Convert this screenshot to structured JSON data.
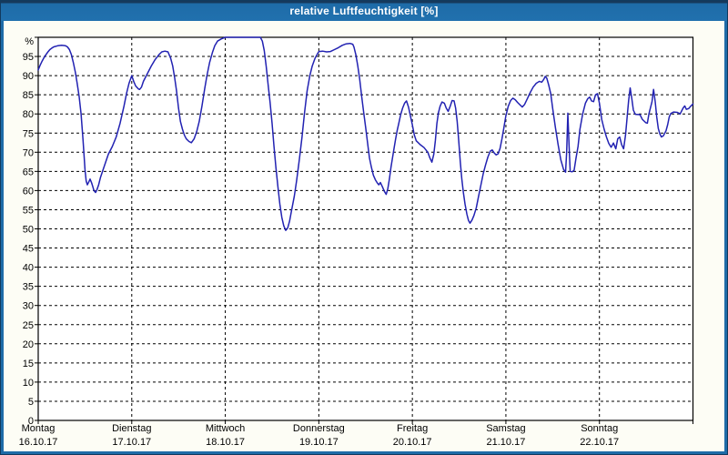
{
  "window": {
    "title": "relative Luftfeuchtigkeit [%]"
  },
  "colors": {
    "titlebar_bg": "#1e6ba8",
    "titlebar_top_edge": "#16395c",
    "window_border": "#123a5e",
    "content_bg": "#fdfdf5",
    "plot_bg": "#ffffff",
    "grid": "#000000",
    "axis": "#000000",
    "line": "#2222b2",
    "title_text": "#ffffff",
    "label_text": "#000000"
  },
  "chart_data": {
    "type": "line",
    "title": "relative Luftfeuchtigkeit [%]",
    "unit_label": "%",
    "xlabel": "",
    "ylabel": "relative Luftfeuchtigkeit",
    "ylim": [
      0,
      100
    ],
    "y_ticks": [
      0,
      5,
      10,
      15,
      20,
      25,
      30,
      35,
      40,
      45,
      50,
      55,
      60,
      65,
      70,
      75,
      80,
      85,
      90,
      95
    ],
    "x_range_hours": [
      0,
      168
    ],
    "grid": "dashed",
    "legend_position": "none",
    "x_days": [
      {
        "name": "Montag",
        "date": "16.10.17"
      },
      {
        "name": "Dienstag",
        "date": "17.10.17"
      },
      {
        "name": "Mittwoch",
        "date": "18.10.17"
      },
      {
        "name": "Donnerstag",
        "date": "19.10.17"
      },
      {
        "name": "Freitag",
        "date": "20.10.17"
      },
      {
        "name": "Samstag",
        "date": "21.10.17"
      },
      {
        "name": "Sonntag",
        "date": "22.10.17"
      }
    ],
    "series": [
      {
        "name": "relative Luftfeuchtigkeit [%]",
        "color": "#2222b2",
        "points": [
          [
            0,
            91.5
          ],
          [
            0.5,
            92.7
          ],
          [
            1,
            93.8
          ],
          [
            1.5,
            94.7
          ],
          [
            2,
            95.5
          ],
          [
            2.5,
            96.2
          ],
          [
            3,
            96.8
          ],
          [
            3.5,
            97.2
          ],
          [
            4,
            97.5
          ],
          [
            5,
            97.8
          ],
          [
            6,
            97.9
          ],
          [
            7,
            97.8
          ],
          [
            7.5,
            97.5
          ],
          [
            8,
            96.8
          ],
          [
            8.5,
            95.5
          ],
          [
            9,
            93.5
          ],
          [
            9.5,
            91
          ],
          [
            10,
            88
          ],
          [
            10.5,
            84.5
          ],
          [
            11,
            80
          ],
          [
            11.5,
            73
          ],
          [
            12,
            65.5
          ],
          [
            12.3,
            62.5
          ],
          [
            12.6,
            61.5
          ],
          [
            13,
            62.3
          ],
          [
            13.3,
            63
          ],
          [
            13.7,
            62
          ],
          [
            14,
            61
          ],
          [
            14.3,
            60
          ],
          [
            14.7,
            59.5
          ],
          [
            15,
            60
          ],
          [
            15.5,
            61.5
          ],
          [
            16,
            63.5
          ],
          [
            17,
            66.5
          ],
          [
            18,
            69.5
          ],
          [
            19,
            71.5
          ],
          [
            20,
            74
          ],
          [
            21,
            77.5
          ],
          [
            22,
            82
          ],
          [
            22.7,
            85.5
          ],
          [
            23.3,
            88
          ],
          [
            24,
            90
          ],
          [
            24.5,
            88.5
          ],
          [
            25,
            87.3
          ],
          [
            25.7,
            86.5
          ],
          [
            26,
            86.4
          ],
          [
            26.5,
            87
          ],
          [
            27,
            88.5
          ],
          [
            28,
            90.5
          ],
          [
            29,
            92.5
          ],
          [
            30,
            94.2
          ],
          [
            31,
            95.5
          ],
          [
            31.7,
            96.2
          ],
          [
            32.5,
            96.4
          ],
          [
            33.3,
            96.2
          ],
          [
            34,
            94.5
          ],
          [
            34.5,
            92.5
          ],
          [
            35,
            89.5
          ],
          [
            35.5,
            86
          ],
          [
            36,
            81.5
          ],
          [
            36.5,
            78
          ],
          [
            37,
            76
          ],
          [
            37.5,
            74.5
          ],
          [
            38,
            73.5
          ],
          [
            38.7,
            72.8
          ],
          [
            39.3,
            72.5
          ],
          [
            40,
            73.5
          ],
          [
            40.7,
            75.5
          ],
          [
            41.3,
            78
          ],
          [
            42,
            82
          ],
          [
            42.7,
            86.5
          ],
          [
            43.3,
            90
          ],
          [
            44,
            93.5
          ],
          [
            44.7,
            96
          ],
          [
            45.3,
            97.8
          ],
          [
            46,
            99
          ],
          [
            47,
            99.6
          ],
          [
            48,
            100
          ],
          [
            50,
            100
          ],
          [
            52,
            100
          ],
          [
            54,
            100
          ],
          [
            56,
            100
          ],
          [
            57,
            100
          ],
          [
            57.5,
            99
          ],
          [
            58,
            96.5
          ],
          [
            58.5,
            92.5
          ],
          [
            59,
            87.5
          ],
          [
            59.5,
            83
          ],
          [
            60,
            77.5
          ],
          [
            60.5,
            71.5
          ],
          [
            61,
            66
          ],
          [
            61.5,
            61
          ],
          [
            62,
            56.5
          ],
          [
            62.5,
            53
          ],
          [
            63,
            50.8
          ],
          [
            63.5,
            49.6
          ],
          [
            64,
            50.2
          ],
          [
            64.5,
            52
          ],
          [
            65,
            54.8
          ],
          [
            65.7,
            58.5
          ],
          [
            66.3,
            62.5
          ],
          [
            67,
            68
          ],
          [
            67.7,
            74
          ],
          [
            68.3,
            80
          ],
          [
            69,
            86
          ],
          [
            69.7,
            90
          ],
          [
            70.3,
            92.5
          ],
          [
            71,
            94.5
          ],
          [
            71.7,
            95.8
          ],
          [
            72,
            96.3
          ],
          [
            73,
            96.4
          ],
          [
            74,
            96.2
          ],
          [
            75,
            96.3
          ],
          [
            76,
            96.8
          ],
          [
            77,
            97.3
          ],
          [
            78,
            97.9
          ],
          [
            79,
            98.3
          ],
          [
            80,
            98.4
          ],
          [
            80.7,
            98.2
          ],
          [
            81,
            97.5
          ],
          [
            81.5,
            95.5
          ],
          [
            82,
            92.5
          ],
          [
            82.5,
            89
          ],
          [
            83,
            84.5
          ],
          [
            83.5,
            80.5
          ],
          [
            84,
            76.5
          ],
          [
            84.5,
            72.5
          ],
          [
            85,
            68.5
          ],
          [
            85.5,
            66
          ],
          [
            86,
            64
          ],
          [
            86.5,
            62.8
          ],
          [
            87,
            62
          ],
          [
            87.4,
            61.5
          ],
          [
            87.8,
            62.1
          ],
          [
            88.3,
            61
          ],
          [
            88.8,
            59.8
          ],
          [
            89.3,
            59
          ],
          [
            89.7,
            60.5
          ],
          [
            90.1,
            63
          ],
          [
            90.5,
            66
          ],
          [
            90.9,
            68.5
          ],
          [
            91.3,
            71
          ],
          [
            91.7,
            73.4
          ],
          [
            92.1,
            75.6
          ],
          [
            92.5,
            77.5
          ],
          [
            93,
            79.8
          ],
          [
            93.5,
            81.5
          ],
          [
            94,
            82.8
          ],
          [
            94.5,
            83.4
          ],
          [
            95,
            81.8
          ],
          [
            95.5,
            79.5
          ],
          [
            96,
            77.2
          ],
          [
            96.5,
            74.5
          ],
          [
            97,
            73
          ],
          [
            98,
            72
          ],
          [
            99,
            71.2
          ],
          [
            99.5,
            70.6
          ],
          [
            100,
            69.9
          ],
          [
            100.5,
            68.5
          ],
          [
            101,
            67.4
          ],
          [
            101.5,
            69.5
          ],
          [
            101.9,
            73
          ],
          [
            102.3,
            77.5
          ],
          [
            102.7,
            80.3
          ],
          [
            103.1,
            82
          ],
          [
            103.6,
            83.1
          ],
          [
            104.2,
            82.8
          ],
          [
            104.7,
            81.5
          ],
          [
            105.2,
            80.7
          ],
          [
            105.7,
            82
          ],
          [
            106.2,
            83.5
          ],
          [
            106.7,
            83.4
          ],
          [
            107.1,
            81.5
          ],
          [
            107.5,
            78
          ],
          [
            107.9,
            73
          ],
          [
            108.3,
            67.5
          ],
          [
            108.7,
            63
          ],
          [
            109.1,
            59.5
          ],
          [
            109.5,
            56.5
          ],
          [
            110,
            53.8
          ],
          [
            110.4,
            52.2
          ],
          [
            110.8,
            51.5
          ],
          [
            111.3,
            52.3
          ],
          [
            111.8,
            53.5
          ],
          [
            112.4,
            55.5
          ],
          [
            113,
            58.5
          ],
          [
            113.6,
            61.5
          ],
          [
            114.2,
            64.5
          ],
          [
            114.8,
            66.8
          ],
          [
            115.4,
            68.8
          ],
          [
            116,
            70.3
          ],
          [
            116.5,
            70.6
          ],
          [
            117,
            69.8
          ],
          [
            117.5,
            69.3
          ],
          [
            118,
            69.6
          ],
          [
            118.5,
            71
          ],
          [
            119,
            73.5
          ],
          [
            119.5,
            76.5
          ],
          [
            120,
            79.5
          ],
          [
            120.6,
            82
          ],
          [
            121.2,
            83.5
          ],
          [
            121.8,
            84.1
          ],
          [
            122.4,
            83.7
          ],
          [
            123,
            83
          ],
          [
            123.6,
            82.4
          ],
          [
            124.2,
            81.8
          ],
          [
            124.8,
            82.5
          ],
          [
            125.5,
            84
          ],
          [
            126.2,
            85.5
          ],
          [
            127,
            87
          ],
          [
            127.8,
            88
          ],
          [
            128.6,
            88.5
          ],
          [
            129.2,
            88.3
          ],
          [
            129.7,
            89
          ],
          [
            130.1,
            89.8
          ],
          [
            130.5,
            89.3
          ],
          [
            131,
            87.5
          ],
          [
            131.5,
            85.3
          ],
          [
            132,
            81.5
          ],
          [
            132.7,
            76.5
          ],
          [
            133.4,
            72
          ],
          [
            134.1,
            68
          ],
          [
            134.8,
            65.5
          ],
          [
            135.3,
            64.8
          ],
          [
            135.6,
            70
          ],
          [
            135.9,
            80.2
          ],
          [
            136.2,
            72
          ],
          [
            136.5,
            65
          ],
          [
            137,
            64.9
          ],
          [
            137.5,
            65.3
          ],
          [
            138,
            68.5
          ],
          [
            138.5,
            71.5
          ],
          [
            139,
            76
          ],
          [
            139.7,
            80
          ],
          [
            140.4,
            82.8
          ],
          [
            141,
            84
          ],
          [
            141.5,
            84.4
          ],
          [
            142,
            83.4
          ],
          [
            142.5,
            83.2
          ],
          [
            143,
            85
          ],
          [
            143.5,
            85.3
          ],
          [
            144,
            82.8
          ],
          [
            144.6,
            78.5
          ],
          [
            145.2,
            76
          ],
          [
            145.8,
            74
          ],
          [
            146.4,
            72.3
          ],
          [
            147,
            71.3
          ],
          [
            147.6,
            72.4
          ],
          [
            148.2,
            70.9
          ],
          [
            148.7,
            73.5
          ],
          [
            149.2,
            74
          ],
          [
            149.7,
            72
          ],
          [
            150.2,
            70.9
          ],
          [
            150.7,
            74.5
          ],
          [
            151.1,
            79
          ],
          [
            151.5,
            83.5
          ],
          [
            151.9,
            86.8
          ],
          [
            152.3,
            84
          ],
          [
            152.7,
            81
          ],
          [
            153.2,
            79.9
          ],
          [
            154.4,
            79.8
          ],
          [
            155,
            78.6
          ],
          [
            155.9,
            77.7
          ],
          [
            156.3,
            77.6
          ],
          [
            156.7,
            80
          ],
          [
            157.5,
            83.2
          ],
          [
            157.9,
            86.4
          ],
          [
            158.3,
            83.2
          ],
          [
            158.7,
            79.2
          ],
          [
            159.1,
            76.2
          ],
          [
            159.5,
            74.8
          ],
          [
            159.9,
            74
          ],
          [
            160.4,
            74.3
          ],
          [
            161.1,
            75.6
          ],
          [
            161.5,
            77.2
          ],
          [
            161.9,
            79.2
          ],
          [
            162.3,
            80.1
          ],
          [
            163,
            80.5
          ],
          [
            164,
            80.4
          ],
          [
            164.7,
            80
          ],
          [
            165.5,
            81.6
          ],
          [
            165.9,
            82.1
          ],
          [
            166.3,
            81.2
          ],
          [
            166.9,
            81.4
          ],
          [
            167.4,
            82
          ],
          [
            168,
            82.6
          ]
        ]
      }
    ]
  }
}
